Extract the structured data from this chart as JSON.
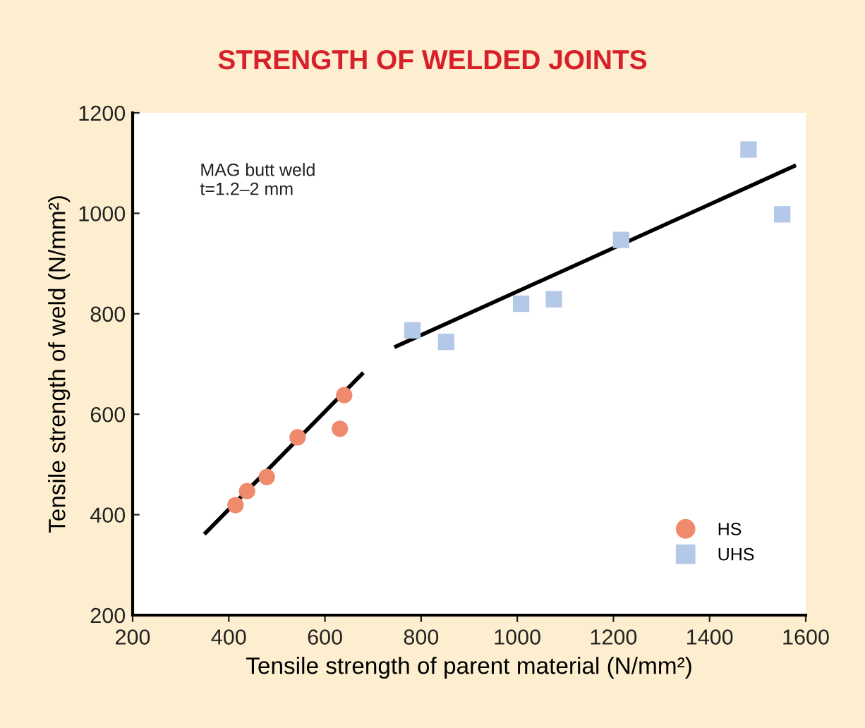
{
  "chart_data": {
    "type": "scatter",
    "title": "STRENGTH OF WELDED JOINTS",
    "xlabel": "Tensile strength of parent material (N/mm²)",
    "ylabel": "Tensile strength of weld (N/mm²)",
    "annotations": [
      "MAG butt weld\nt=1.2–2 mm"
    ],
    "series": [
      {
        "name": "HS",
        "color": "#f08a6c",
        "marker": "circle",
        "x": [
          414,
          438,
          479,
          543,
          631,
          640
        ],
        "values": [
          419,
          447,
          475,
          554,
          571,
          638
        ]
      },
      {
        "name": "UHS",
        "color": "#b4c8e8",
        "marker": "square",
        "x": [
          782,
          852,
          1008,
          1076,
          1216,
          1481,
          1551
        ],
        "values": [
          767,
          744,
          820,
          829,
          947,
          1127,
          998
        ]
      },
      {
        "type": "line",
        "color": "#000000",
        "x": [
          352,
          677
        ],
        "values": [
          364,
          680
        ]
      },
      {
        "type": "line",
        "color": "#000000",
        "x": [
          748,
          1576
        ],
        "values": [
          735,
          1094
        ]
      }
    ],
    "xlim": [
      200,
      1600
    ],
    "ylim": [
      200,
      1200
    ],
    "xticks": [
      200,
      400,
      600,
      800,
      1000,
      1200,
      1400,
      1600
    ],
    "yticks": [
      200,
      400,
      600,
      800,
      1000,
      1200
    ],
    "legend": "bottom right"
  }
}
